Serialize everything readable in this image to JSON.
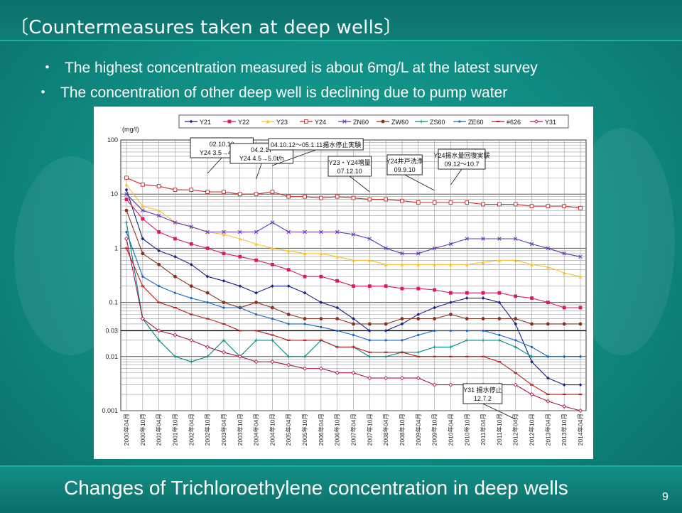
{
  "slide": {
    "title": "〔Countermeasures taken at deep wells〕",
    "bullets": [
      "The highest concentration measured is about 6mg/L at the latest survey",
      "The concentration of other deep well is declining due to pump water"
    ],
    "bullet_marker": "・",
    "caption": "Changes of Trichloroethylene concentration in deep wells",
    "page_number": "9"
  },
  "chart_data": {
    "type": "line",
    "title": "",
    "ylabel": "(mg/ℓ)",
    "yscale": "log",
    "ylim": [
      0.001,
      100
    ],
    "y_ticks": [
      "100",
      "10",
      "1",
      "0.1",
      "0.03",
      "0.01",
      "0.001"
    ],
    "x_ticks": [
      "2000年04月",
      "2000年10月",
      "2001年04月",
      "2001年10月",
      "2002年04月",
      "2002年10月",
      "2003年04月",
      "2003年10月",
      "2004年04月",
      "2004年10月",
      "2005年04月",
      "2005年10月",
      "2006年04月",
      "2006年10月",
      "2007年04月",
      "2007年10月",
      "2008年04月",
      "2008年10月",
      "2009年04月",
      "2009年10月",
      "2010年04月",
      "2010年10月",
      "2011年04月",
      "2011年10月",
      "2012年04月",
      "2012年10月",
      "2013年04月",
      "2013年10月",
      "2014年04月"
    ],
    "legend_position": "top",
    "reference_line": 0.03,
    "annotations": [
      {
        "lines": [
          "02.10.10",
          "Y24 3.5→4.5t/h"
        ],
        "x": "2002年10月"
      },
      {
        "lines": [
          "04.2.17",
          "Y24 4.5→5.0t/h"
        ],
        "x": "2004年04月"
      },
      {
        "lines": [
          "04.10.12〜05.1.11揚水停止実験"
        ],
        "x": "2004年10月"
      },
      {
        "lines": [
          "Y23・Y24増量",
          "07.12.10"
        ],
        "x": "2007年10月"
      },
      {
        "lines": [
          "Y24井戸洗浄",
          "09.9.10"
        ],
        "x": "2009年10月"
      },
      {
        "lines": [
          "Y24揚水量回復実験",
          "09.12〜10.7"
        ],
        "x": "2010年04月"
      },
      {
        "lines": [
          "Y31 揚水停止",
          "12.7.2"
        ],
        "x": "2012年04月"
      }
    ],
    "series": [
      {
        "name": "Y21",
        "color": "#1a237e",
        "marker": "diamond",
        "values": [
          12,
          1.5,
          0.9,
          0.7,
          0.5,
          0.3,
          0.25,
          0.2,
          0.15,
          0.2,
          0.2,
          0.15,
          0.1,
          0.08,
          0.05,
          0.03,
          0.03,
          0.04,
          0.06,
          0.08,
          0.1,
          0.12,
          0.12,
          0.1,
          0.04,
          0.008,
          0.004,
          0.003,
          0.003
        ]
      },
      {
        "name": "Y22",
        "color": "#d81b60",
        "marker": "square",
        "values": [
          8,
          3.5,
          2,
          1.5,
          1.2,
          1,
          0.8,
          0.7,
          0.6,
          0.5,
          0.4,
          0.3,
          0.3,
          0.25,
          0.2,
          0.2,
          0.2,
          0.18,
          0.18,
          0.17,
          0.15,
          0.15,
          0.15,
          0.15,
          0.13,
          0.12,
          0.1,
          0.08,
          0.08
        ]
      },
      {
        "name": "Y23",
        "color": "#fbc02d",
        "marker": "triangle",
        "values": [
          15,
          6,
          5,
          3,
          2.5,
          2,
          1.8,
          1.5,
          1.2,
          1,
          0.9,
          0.8,
          0.8,
          0.7,
          0.6,
          0.6,
          0.5,
          0.5,
          0.5,
          0.5,
          0.5,
          0.5,
          0.55,
          0.6,
          0.6,
          0.5,
          0.45,
          0.35,
          0.3
        ]
      },
      {
        "name": "Y24",
        "color": "#c62828",
        "marker": "square-open",
        "values": [
          20,
          15,
          14,
          12,
          12,
          11,
          11,
          10,
          10,
          11,
          9,
          9,
          8.5,
          9,
          8.5,
          8,
          8,
          7.5,
          7,
          7,
          7,
          7,
          6.5,
          6.5,
          6.5,
          6,
          6,
          6,
          5.5
        ]
      },
      {
        "name": "ZN60",
        "color": "#5e35b1",
        "marker": "x",
        "values": [
          10,
          5,
          4,
          3,
          2.5,
          2,
          2,
          2,
          2,
          3,
          2,
          2,
          2,
          2,
          1.8,
          1.5,
          1,
          0.8,
          0.8,
          1,
          1.2,
          1.5,
          1.5,
          1.5,
          1.5,
          1.2,
          1,
          0.8,
          0.7
        ]
      },
      {
        "name": "ZW60",
        "color": "#8d2f1c",
        "marker": "circle",
        "values": [
          5,
          0.8,
          0.5,
          0.3,
          0.2,
          0.15,
          0.1,
          0.08,
          0.1,
          0.08,
          0.06,
          0.05,
          0.05,
          0.05,
          0.04,
          0.04,
          0.04,
          0.05,
          0.05,
          0.05,
          0.06,
          0.05,
          0.05,
          0.05,
          0.05,
          0.04,
          0.04,
          0.04,
          0.04
        ]
      },
      {
        "name": "ZS60",
        "color": "#00897b",
        "marker": "plus",
        "values": [
          3,
          0.05,
          0.02,
          0.01,
          0.008,
          0.01,
          0.02,
          0.01,
          0.02,
          0.02,
          0.01,
          0.01,
          0.02,
          0.015,
          0.015,
          0.01,
          0.01,
          0.012,
          0.012,
          0.015,
          0.015,
          0.02,
          0.02,
          0.02,
          0.015,
          0.01,
          0.01,
          0.01,
          0.01
        ]
      },
      {
        "name": "ZE60",
        "color": "#1565c0",
        "marker": "dot",
        "values": [
          2,
          0.3,
          0.2,
          0.15,
          0.12,
          0.1,
          0.08,
          0.08,
          0.06,
          0.05,
          0.04,
          0.04,
          0.035,
          0.03,
          0.025,
          0.02,
          0.02,
          0.02,
          0.025,
          0.03,
          0.03,
          0.03,
          0.03,
          0.025,
          0.02,
          0.015,
          0.01,
          0.01,
          0.01
        ]
      },
      {
        "name": "#626",
        "color": "#b71c1c",
        "marker": "hash",
        "values": [
          1,
          0.2,
          0.1,
          0.08,
          0.06,
          0.05,
          0.04,
          0.03,
          0.03,
          0.025,
          0.02,
          0.02,
          0.02,
          0.015,
          0.015,
          0.012,
          0.012,
          0.012,
          0.01,
          0.01,
          0.01,
          0.01,
          0.01,
          0.008,
          0.005,
          0.003,
          0.002,
          0.002,
          0.002
        ]
      },
      {
        "name": "Y31",
        "color": "#ad1457",
        "marker": "diamond-open",
        "values": [
          1.5,
          0.05,
          0.03,
          0.025,
          0.02,
          0.015,
          0.012,
          0.01,
          0.008,
          0.008,
          0.007,
          0.006,
          0.006,
          0.005,
          0.005,
          0.004,
          0.004,
          0.004,
          0.004,
          0.003,
          0.003,
          0.003,
          0.003,
          0.003,
          0.003,
          0.002,
          0.0015,
          0.0012,
          0.001
        ]
      }
    ]
  }
}
